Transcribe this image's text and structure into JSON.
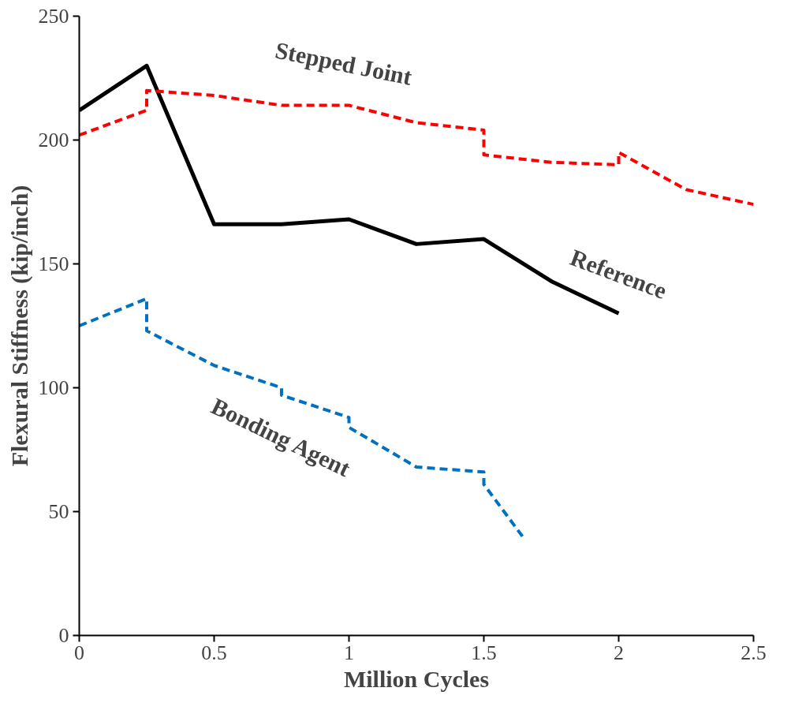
{
  "chart_data": {
    "type": "line",
    "xlabel": "Million Cycles",
    "ylabel": "Flexural Stiffness (kip/inch)",
    "xlim": [
      0,
      2.5
    ],
    "ylim": [
      0,
      250
    ],
    "xticks": [
      0,
      0.5,
      1,
      1.5,
      2,
      2.5
    ],
    "yticks": [
      0,
      50,
      100,
      150,
      200,
      250
    ],
    "grid": false,
    "marker": "none",
    "series": [
      {
        "color": "#000000",
        "line_style": "solid",
        "x": [
          0,
          0.25,
          0.5,
          0.75,
          1.0,
          1.25,
          1.5,
          1.75,
          2.0
        ],
        "values": [
          212,
          230,
          166,
          166,
          168,
          158,
          160,
          143,
          130
        ]
      },
      {
        "color": "#ff0000",
        "line_style": "dashed",
        "x": [
          0,
          0.25,
          0.25,
          0.5,
          0.75,
          1.0,
          1.25,
          1.5,
          1.5,
          1.75,
          2.0,
          2.0,
          2.25,
          2.5
        ],
        "values": [
          202,
          212,
          220,
          218,
          214,
          214,
          207,
          204,
          194,
          191,
          190,
          195,
          180,
          174
        ]
      },
      {
        "color": "#0070c0",
        "line_style": "dashed",
        "x": [
          0,
          0.25,
          0.25,
          0.5,
          0.75,
          0.75,
          1.0,
          1.0,
          1.25,
          1.5,
          1.5,
          1.65
        ],
        "values": [
          125,
          136,
          123,
          109,
          100,
          97,
          88,
          84,
          68,
          66,
          61,
          39
        ]
      }
    ],
    "annotations": [
      "Stepped Joint",
      "Reference",
      "Bonding Agent"
    ]
  }
}
